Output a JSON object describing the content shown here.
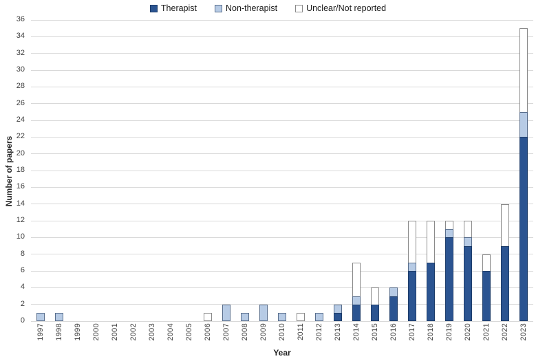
{
  "legend": {
    "items": [
      {
        "label": "Therapist",
        "color": "#2b5491",
        "border": "#1d3c69"
      },
      {
        "label": "Non-therapist",
        "color": "#b7cbe5",
        "border": "#596e8c"
      },
      {
        "label": "Unclear/Not reported",
        "color": "#ffffff",
        "border": "#8a8a8a"
      }
    ]
  },
  "chart_data": {
    "type": "bar",
    "stacked": true,
    "title": "",
    "xlabel": "Year",
    "ylabel": "Number of papers",
    "ylim": [
      0,
      36
    ],
    "ytick_step": 2,
    "yticks": [
      0,
      2,
      4,
      6,
      8,
      10,
      12,
      14,
      16,
      18,
      20,
      22,
      24,
      26,
      28,
      30,
      32,
      34,
      36
    ],
    "grid": true,
    "legend_position": "top-center",
    "categories": [
      "1997",
      "1998",
      "1999",
      "2000",
      "2001",
      "2002",
      "2003",
      "2004",
      "2005",
      "2006",
      "2007",
      "2008",
      "2009",
      "2010",
      "2011",
      "2012",
      "2013",
      "2014",
      "2015",
      "2016",
      "2017",
      "2018",
      "2019",
      "2020",
      "2021",
      "2022",
      "2023"
    ],
    "series": [
      {
        "name": "Therapist",
        "color": "#2b5491",
        "border": "#1d3c69",
        "values": [
          0,
          0,
          0,
          0,
          0,
          0,
          0,
          0,
          0,
          0,
          0,
          0,
          0,
          0,
          0,
          0,
          1,
          2,
          2,
          3,
          6,
          7,
          10,
          9,
          6,
          9,
          22
        ]
      },
      {
        "name": "Non-therapist",
        "color": "#b7cbe5",
        "border": "#596e8c",
        "values": [
          1,
          1,
          0,
          0,
          0,
          0,
          0,
          0,
          0,
          0,
          2,
          1,
          2,
          1,
          0,
          1,
          1,
          1,
          0,
          1,
          1,
          0,
          1,
          1,
          0,
          0,
          3
        ]
      },
      {
        "name": "Unclear/Not reported",
        "color": "#ffffff",
        "border": "#8a8a8a",
        "values": [
          0,
          0,
          0,
          0,
          0,
          0,
          0,
          0,
          0,
          1,
          0,
          0,
          0,
          0,
          1,
          0,
          0,
          4,
          2,
          0,
          5,
          5,
          1,
          2,
          2,
          5,
          10
        ]
      }
    ],
    "totals": [
      1,
      1,
      0,
      0,
      0,
      0,
      0,
      0,
      0,
      1,
      2,
      1,
      2,
      1,
      1,
      1,
      2,
      7,
      4,
      4,
      12,
      12,
      12,
      12,
      8,
      14,
      35
    ]
  }
}
